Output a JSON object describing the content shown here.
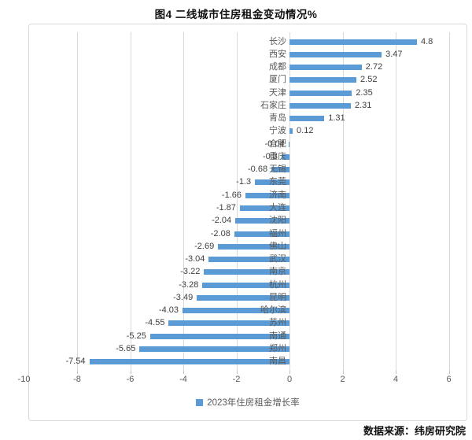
{
  "page": {
    "title": "图4  二线城市住房租金变动情况%",
    "source": "数据来源：纬房研究院"
  },
  "chart_data": {
    "type": "bar",
    "orientation": "horizontal",
    "title": "图4  二线城市住房租金变动情况%",
    "categories": [
      "长沙",
      "西安",
      "成都",
      "厦门",
      "天津",
      "石家庄",
      "青岛",
      "宁波",
      "合肥",
      "重庆",
      "无锡",
      "东莞",
      "济南",
      "大连",
      "沈阳",
      "福州",
      "佛山",
      "武汉",
      "南京",
      "杭州",
      "昆明",
      "哈尔滨",
      "苏州",
      "南通",
      "郑州",
      "南昌"
    ],
    "values": [
      4.8,
      3.47,
      2.72,
      2.52,
      2.35,
      2.31,
      1.31,
      0.12,
      -0.04,
      -0.3,
      -0.68,
      -1.3,
      -1.66,
      -1.87,
      -2.04,
      -2.08,
      -2.69,
      -3.04,
      -3.22,
      -3.28,
      -3.49,
      -4.03,
      -4.55,
      -5.25,
      -5.65,
      -7.54
    ],
    "value_labels": [
      "4.8",
      "3.47",
      "2.72",
      "2.52",
      "2.35",
      "2.31",
      "1.31",
      "0.12",
      "-0.04",
      "-0.3",
      "-0.68",
      "-1.3",
      "-1.66",
      "-1.87",
      "-2.04",
      "-2.08",
      "-2.69",
      "-3.04",
      "-3.22",
      "-3.28",
      "-3.49",
      "-4.03",
      "-4.55",
      "-5.25",
      "-5.65",
      "-7.54"
    ],
    "x_ticks": [
      -10,
      -8,
      -6,
      -4,
      -2,
      0,
      2,
      4,
      6
    ],
    "xlim": [
      -10,
      6
    ],
    "grid": true,
    "legend": [
      "2023年住房租金增长率"
    ],
    "legend_position": "bottom",
    "colors": {
      "bar": "#5B9BD5",
      "grid": "#D9D9D9",
      "axis_text": "#595959",
      "value_text": "#3F3F3F"
    }
  }
}
